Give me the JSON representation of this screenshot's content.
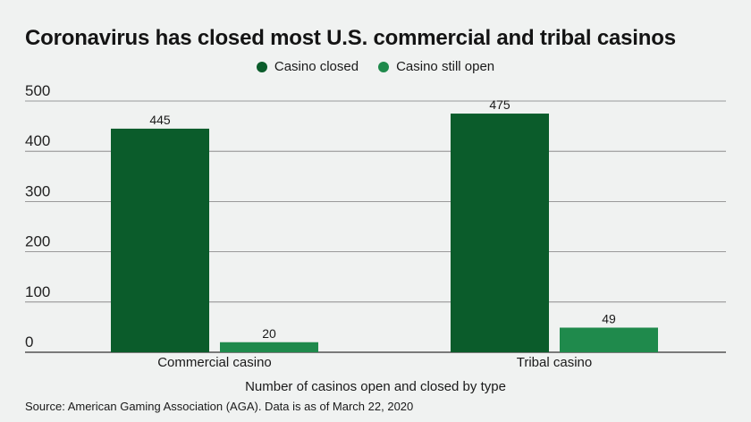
{
  "chart_data": {
    "type": "bar",
    "title": "Coronavirus has closed most U.S. commercial and tribal casinos",
    "xlabel": "Number of casinos open and closed by type",
    "ylabel": "",
    "categories": [
      "Commercial casino",
      "Tribal casino"
    ],
    "series": [
      {
        "name": "Casino closed",
        "values": [
          445,
          475
        ],
        "color": "#0b5c2b"
      },
      {
        "name": "Casino still open",
        "values": [
          20,
          49
        ],
        "color": "#1f8a4c"
      }
    ],
    "ylim": [
      0,
      500
    ],
    "yticks": [
      0,
      100,
      200,
      300,
      400,
      500
    ],
    "grid": true,
    "legend": "top-center",
    "source": "Source: American Gaming Association (AGA). Data is as of March 22, 2020"
  }
}
